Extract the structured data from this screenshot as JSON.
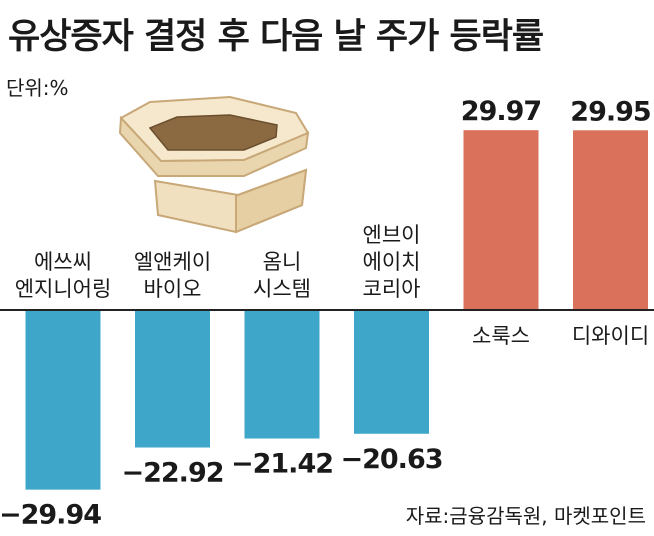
{
  "title": "유상증자 결정 후 다음 날 주가 등락률",
  "unit": "단위:%",
  "source": "자료:금융감독원, 마켓포인트",
  "colors": {
    "negative": "#3ea6c9",
    "positive": "#d9715b",
    "axis": "#222222"
  },
  "decoration": "wooden-box-illustration",
  "chart_data": {
    "type": "bar",
    "title": "유상증자 결정 후 다음 날 주가 등락률",
    "ylabel": "단위:%",
    "categories": [
      [
        "에쓰씨",
        "엔지니어링"
      ],
      [
        "엘앤케이",
        "바이오"
      ],
      [
        "옴니",
        "시스템"
      ],
      [
        "엔브이",
        "에이치",
        "코리아"
      ],
      [
        "소룩스"
      ],
      [
        "디와이디"
      ]
    ],
    "values": [
      -29.94,
      -22.92,
      -21.42,
      -20.63,
      29.97,
      29.95
    ],
    "value_labels": [
      "−29.94",
      "−22.92",
      "−21.42",
      "−20.63",
      "29.97",
      "29.95"
    ],
    "ylim": [
      -30,
      30
    ],
    "grid": false,
    "legend": "none"
  }
}
